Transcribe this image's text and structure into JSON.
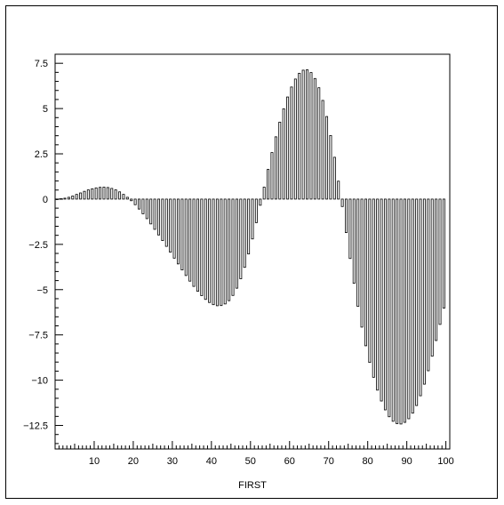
{
  "chart_data": {
    "type": "bar",
    "title": "",
    "xlabel": "FIRST",
    "ylabel": "",
    "xlim": [
      0,
      101
    ],
    "ylim": [
      -13.8,
      8.0
    ],
    "xticks": [
      10,
      20,
      30,
      40,
      50,
      60,
      70,
      80,
      90,
      100
    ],
    "yticks": [
      7.5,
      5,
      2.5,
      0,
      -2.5,
      -5,
      -7.5,
      -10,
      -12.5
    ],
    "ytick_labels": [
      "7.5",
      "5",
      "2.5",
      "0",
      "−2.5",
      "−5",
      "−7.5",
      "−10",
      "−12.5"
    ],
    "x": [
      1,
      2,
      3,
      4,
      5,
      6,
      7,
      8,
      9,
      10,
      11,
      12,
      13,
      14,
      15,
      16,
      17,
      18,
      19,
      20,
      21,
      22,
      23,
      24,
      25,
      26,
      27,
      28,
      29,
      30,
      31,
      32,
      33,
      34,
      35,
      36,
      37,
      38,
      39,
      40,
      41,
      42,
      43,
      44,
      45,
      46,
      47,
      48,
      49,
      50,
      51,
      52,
      53,
      54,
      55,
      56,
      57,
      58,
      59,
      60,
      61,
      62,
      63,
      64,
      65,
      66,
      67,
      68,
      69,
      70,
      71,
      72,
      73,
      74,
      75,
      76,
      77,
      78,
      79,
      80,
      81,
      82,
      83,
      84,
      85,
      86,
      87,
      88,
      89,
      90,
      91,
      92,
      93,
      94,
      95,
      96,
      97,
      98,
      99,
      100
    ],
    "values": [
      0.0,
      0.02,
      0.05,
      0.1,
      0.17,
      0.26,
      0.34,
      0.43,
      0.51,
      0.57,
      0.62,
      0.65,
      0.66,
      0.64,
      0.59,
      0.51,
      0.4,
      0.26,
      0.1,
      -0.09,
      -0.31,
      -0.55,
      -0.81,
      -1.08,
      -1.37,
      -1.67,
      -1.98,
      -2.29,
      -2.61,
      -2.93,
      -3.26,
      -3.58,
      -3.91,
      -4.22,
      -4.53,
      -4.82,
      -5.09,
      -5.33,
      -5.54,
      -5.71,
      -5.83,
      -5.89,
      -5.88,
      -5.79,
      -5.61,
      -5.32,
      -4.92,
      -4.4,
      -3.77,
      -3.03,
      -2.2,
      -1.3,
      -0.34,
      0.66,
      1.64,
      2.57,
      3.44,
      4.25,
      4.99,
      5.64,
      6.19,
      6.63,
      6.95,
      7.12,
      7.14,
      6.99,
      6.66,
      6.15,
      5.45,
      4.56,
      3.51,
      2.31,
      0.99,
      -0.41,
      -1.85,
      -3.28,
      -4.65,
      -5.92,
      -7.07,
      -8.1,
      -9.02,
      -9.84,
      -10.55,
      -11.15,
      -11.64,
      -12.02,
      -12.27,
      -12.4,
      -12.42,
      -12.33,
      -12.13,
      -11.82,
      -11.4,
      -10.86,
      -10.22,
      -9.48,
      -8.67,
      -7.81,
      -6.92,
      -6.02
    ]
  }
}
